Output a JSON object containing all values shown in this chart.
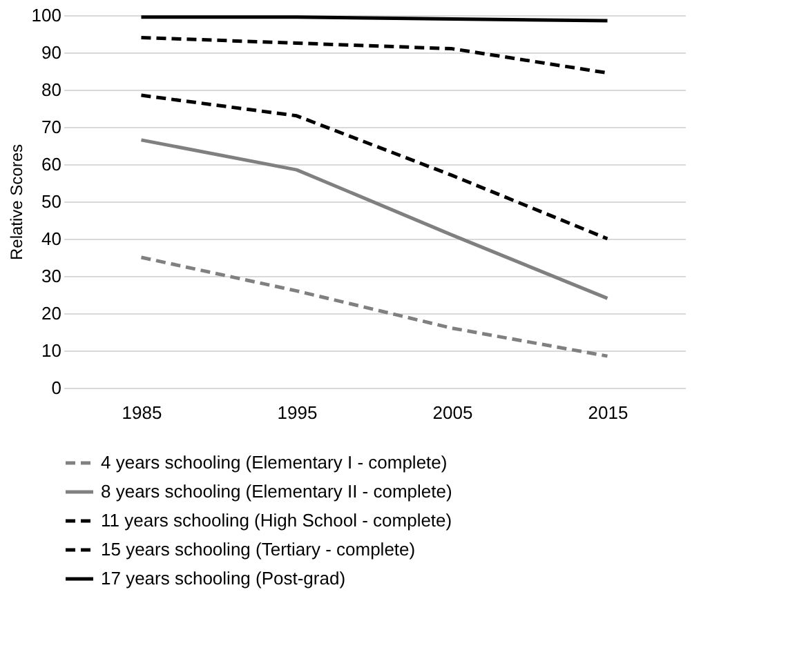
{
  "chart_data": {
    "type": "line",
    "ylabel": "Relative Scores",
    "categories": [
      "1985",
      "1995",
      "2005",
      "2015"
    ],
    "ylim": [
      0,
      100
    ],
    "yticks": [
      0,
      10,
      20,
      30,
      40,
      50,
      60,
      70,
      80,
      90,
      100
    ],
    "grid": "y",
    "legend": "bottom",
    "marker": "none",
    "series": [
      {
        "name": "4 years schooling (Elementary I - complete)",
        "color": "#808080",
        "line_style": "dashed",
        "values": [
          35,
          26,
          16,
          8.5
        ]
      },
      {
        "name": "8 years schooling (Elementary II - complete)",
        "color": "#808080",
        "line_style": "solid",
        "values": [
          66.5,
          58.5,
          41,
          24
        ]
      },
      {
        "name": "11 years schooling (High School - complete)",
        "color": "#000000",
        "line_style": "dashed",
        "values": [
          78.5,
          73,
          57,
          40
        ]
      },
      {
        "name": "15 years schooling (Tertiary  - complete)",
        "color": "#000000",
        "line_style": "dashed",
        "values": [
          94,
          92.5,
          91,
          84.5
        ]
      },
      {
        "name": "17 years schooling (Post-grad)",
        "color": "#000000",
        "line_style": "solid",
        "values": [
          99.5,
          99.5,
          99,
          98.5
        ]
      }
    ]
  }
}
